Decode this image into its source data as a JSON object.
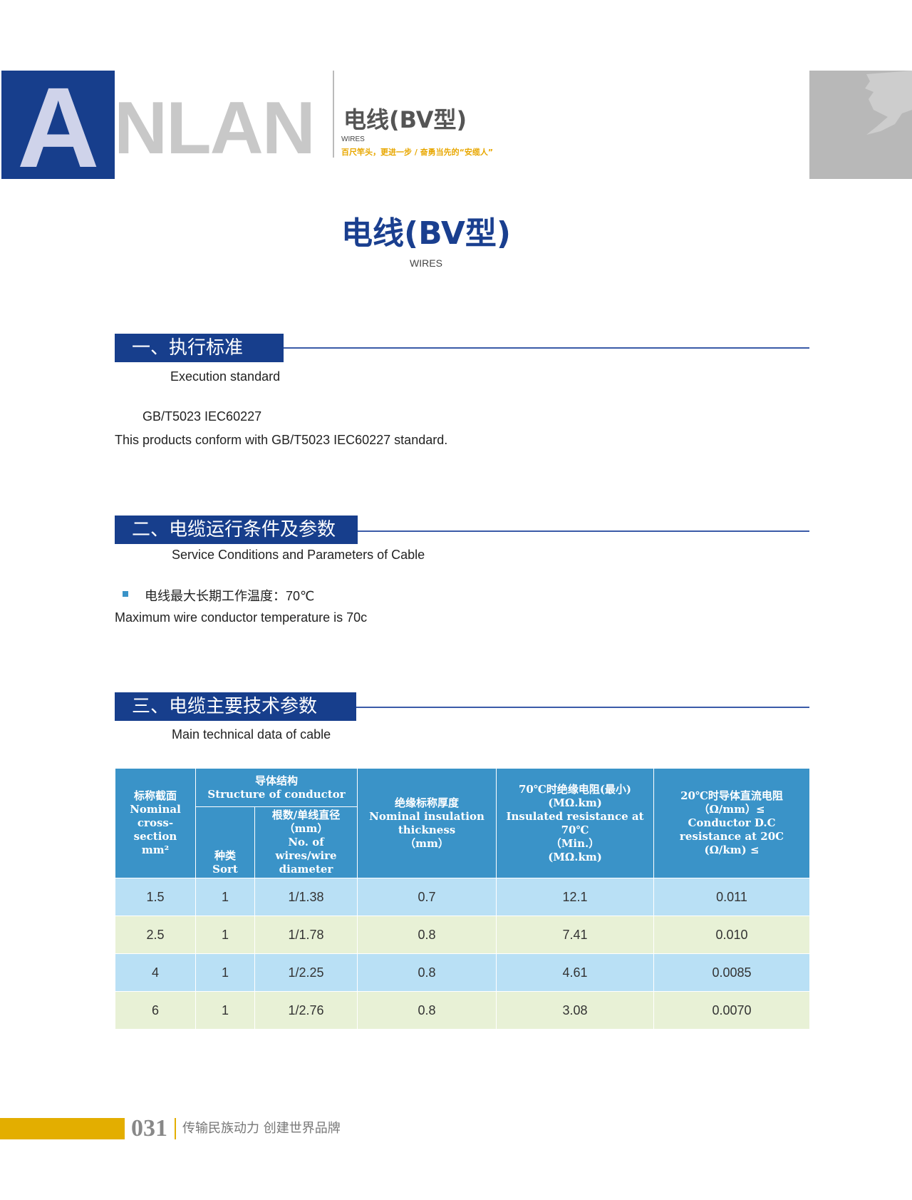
{
  "header": {
    "logo_text": "ANLAN",
    "title": "电线(BV型)",
    "subtitle": "WIRES",
    "slogan": "百尺竿头，更进一步 / 奋勇当先的“安缆人”"
  },
  "main": {
    "title": "电线(BV型)",
    "subtitle": "WIRES"
  },
  "sections": [
    {
      "heading": "一、执行标准",
      "subheading": "Execution standard",
      "lines": [
        "GB/T5023  IEC60227",
        "This products conform with GB/T5023  IEC60227 standard."
      ]
    },
    {
      "heading": "二、电缆运行条件及参数",
      "subheading": "Service Conditions and Parameters of Cable",
      "lines": [
        "电线最大长期工作温度：70℃",
        "Maximum wire conductor temperature is 70c"
      ]
    },
    {
      "heading": "三、电缆主要技术参数",
      "subheading": "Main technical data of cable"
    }
  ],
  "table": {
    "headers": {
      "cross_section": [
        "标称截面",
        "Nominal",
        "cross-section",
        "mm²"
      ],
      "structure": [
        "导体结构",
        "Structure of conductor"
      ],
      "sort": [
        "种类",
        "Sort"
      ],
      "wires": [
        "根数/单线直径",
        "（mm）",
        "No. of wires/wire",
        "diameter"
      ],
      "insulation": [
        "绝缘标称厚度",
        "Nominal insulation",
        "thickness",
        "（mm）"
      ],
      "resistance70": [
        "70℃时绝缘电阻(最小)",
        "(MΩ.km)",
        "Insulated resistance at 70℃",
        "（Min.）",
        "(MΩ.km)"
      ],
      "resistance20": [
        "20℃时导体直流电阻",
        "（Ω/mm）≤",
        "Conductor D.C",
        "resistance at 20C",
        "(Ω/km) ≤"
      ]
    },
    "rows": [
      [
        "1.5",
        "1",
        "1/1.38",
        "0.7",
        "12.1",
        "0.011"
      ],
      [
        "2.5",
        "1",
        "1/1.78",
        "0.8",
        "7.41",
        "0.010"
      ],
      [
        "4",
        "1",
        "1/2.25",
        "0.8",
        "4.61",
        "0.0085"
      ],
      [
        "6",
        "1",
        "1/2.76",
        "0.8",
        "3.08",
        "0.0070"
      ]
    ]
  },
  "footer": {
    "page": "031",
    "slogan": "传输民族动力  创建世界品牌"
  },
  "colors": {
    "brand_blue": "#173e8c",
    "table_header": "#3a93c8",
    "row_blue": "#b9e0f5",
    "row_green": "#e8f1d6",
    "accent_gold": "#e3ae00"
  }
}
